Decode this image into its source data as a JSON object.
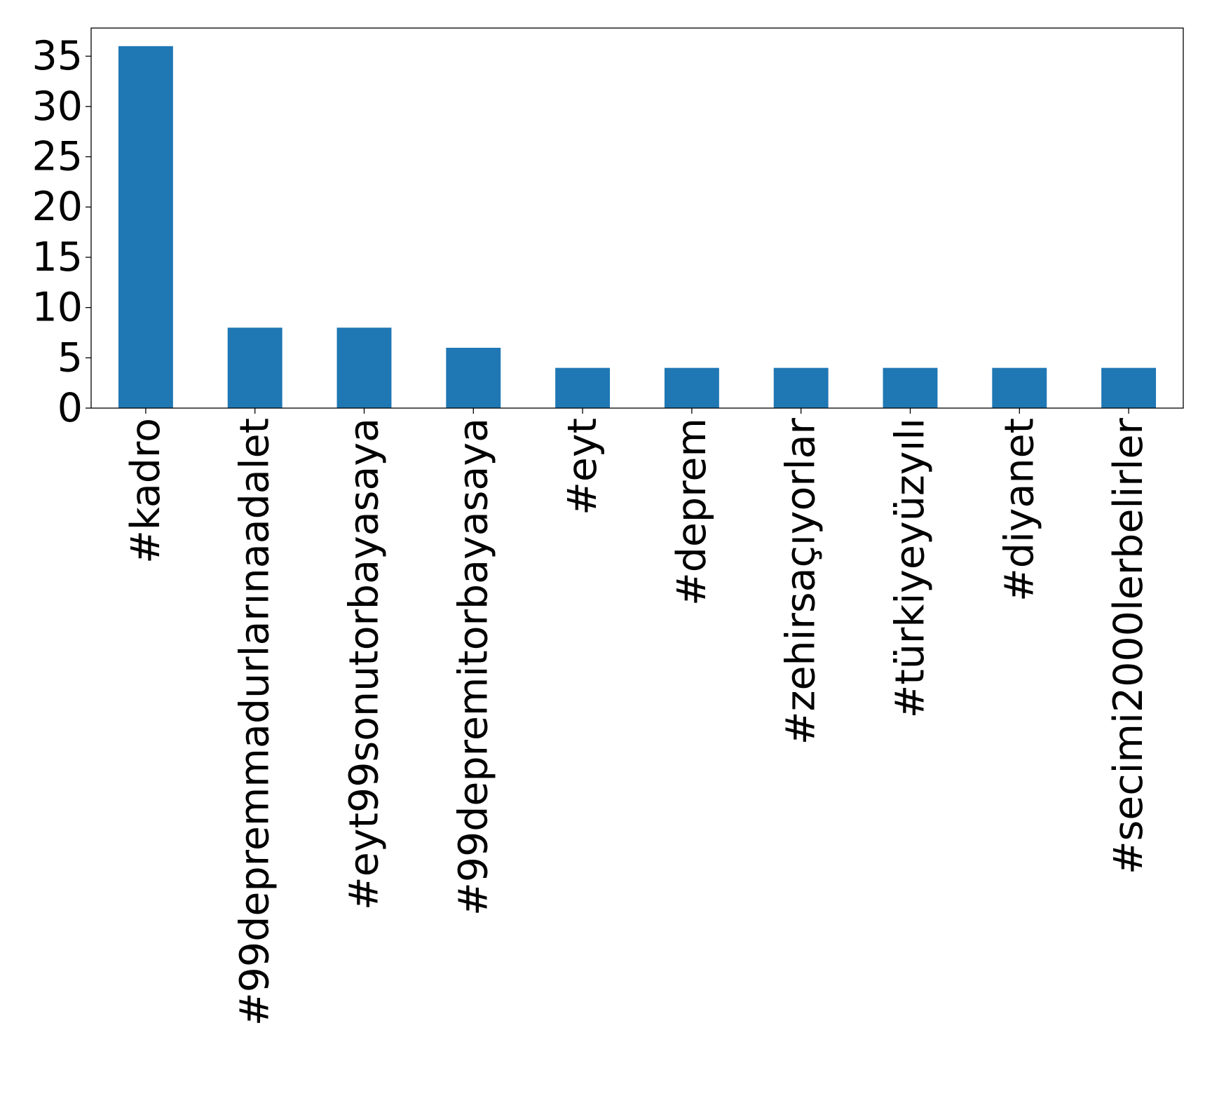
{
  "chart_data": {
    "type": "bar",
    "title": "",
    "xlabel": "",
    "ylabel": "",
    "categories": [
      "#kadro",
      "#99depremmadurlarınaadalet",
      "#eyt99sonutorbayasaya",
      "#99depremitorbayasaya",
      "#eyt",
      "#deprem",
      "#zehirsaçıyorlar",
      "#türkiyeyüzyılı",
      "#diyanet",
      "#secimi2000lerbelirler"
    ],
    "values": [
      36,
      8,
      8,
      6,
      4,
      4,
      4,
      4,
      4,
      4
    ],
    "ylim": [
      0,
      37.8
    ],
    "yticks": [
      0,
      5,
      10,
      15,
      20,
      25,
      30,
      35
    ],
    "grid": false,
    "legend": "none",
    "bar_color": "#1f77b4",
    "axis_color": "#000000"
  }
}
